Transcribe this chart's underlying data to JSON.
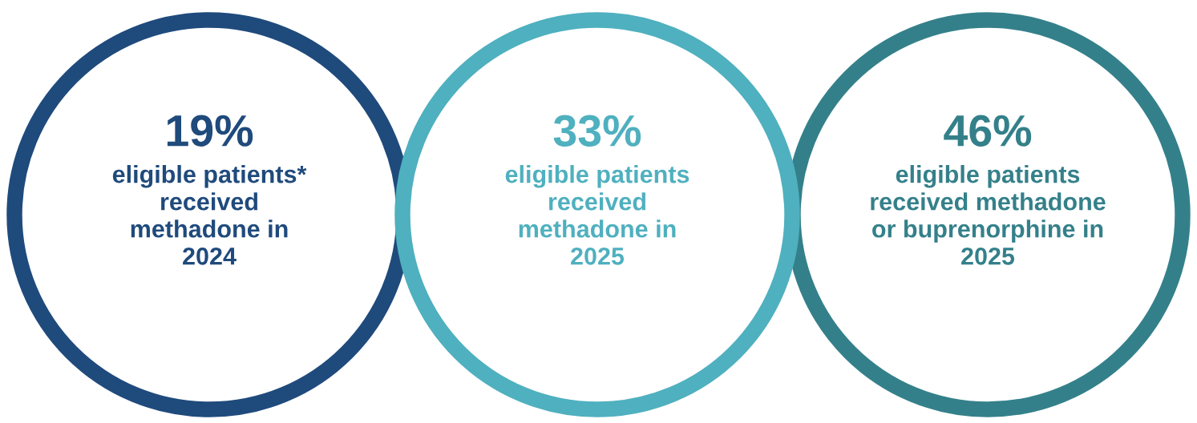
{
  "chart_data": {
    "type": "other",
    "categories": [
      "eligible patients*\nreceived\nmethadone in\n2024",
      "eligible patients\nreceived\nmethadone in\n2025",
      "eligible patients\nreceived methadone\nor buprenorphine in\n2025"
    ],
    "values": [
      19,
      33,
      46
    ],
    "value_labels": [
      "19%",
      "33%",
      "46%"
    ],
    "colors": [
      "#1f4a7c",
      "#4fb0bf",
      "#34808a"
    ]
  }
}
